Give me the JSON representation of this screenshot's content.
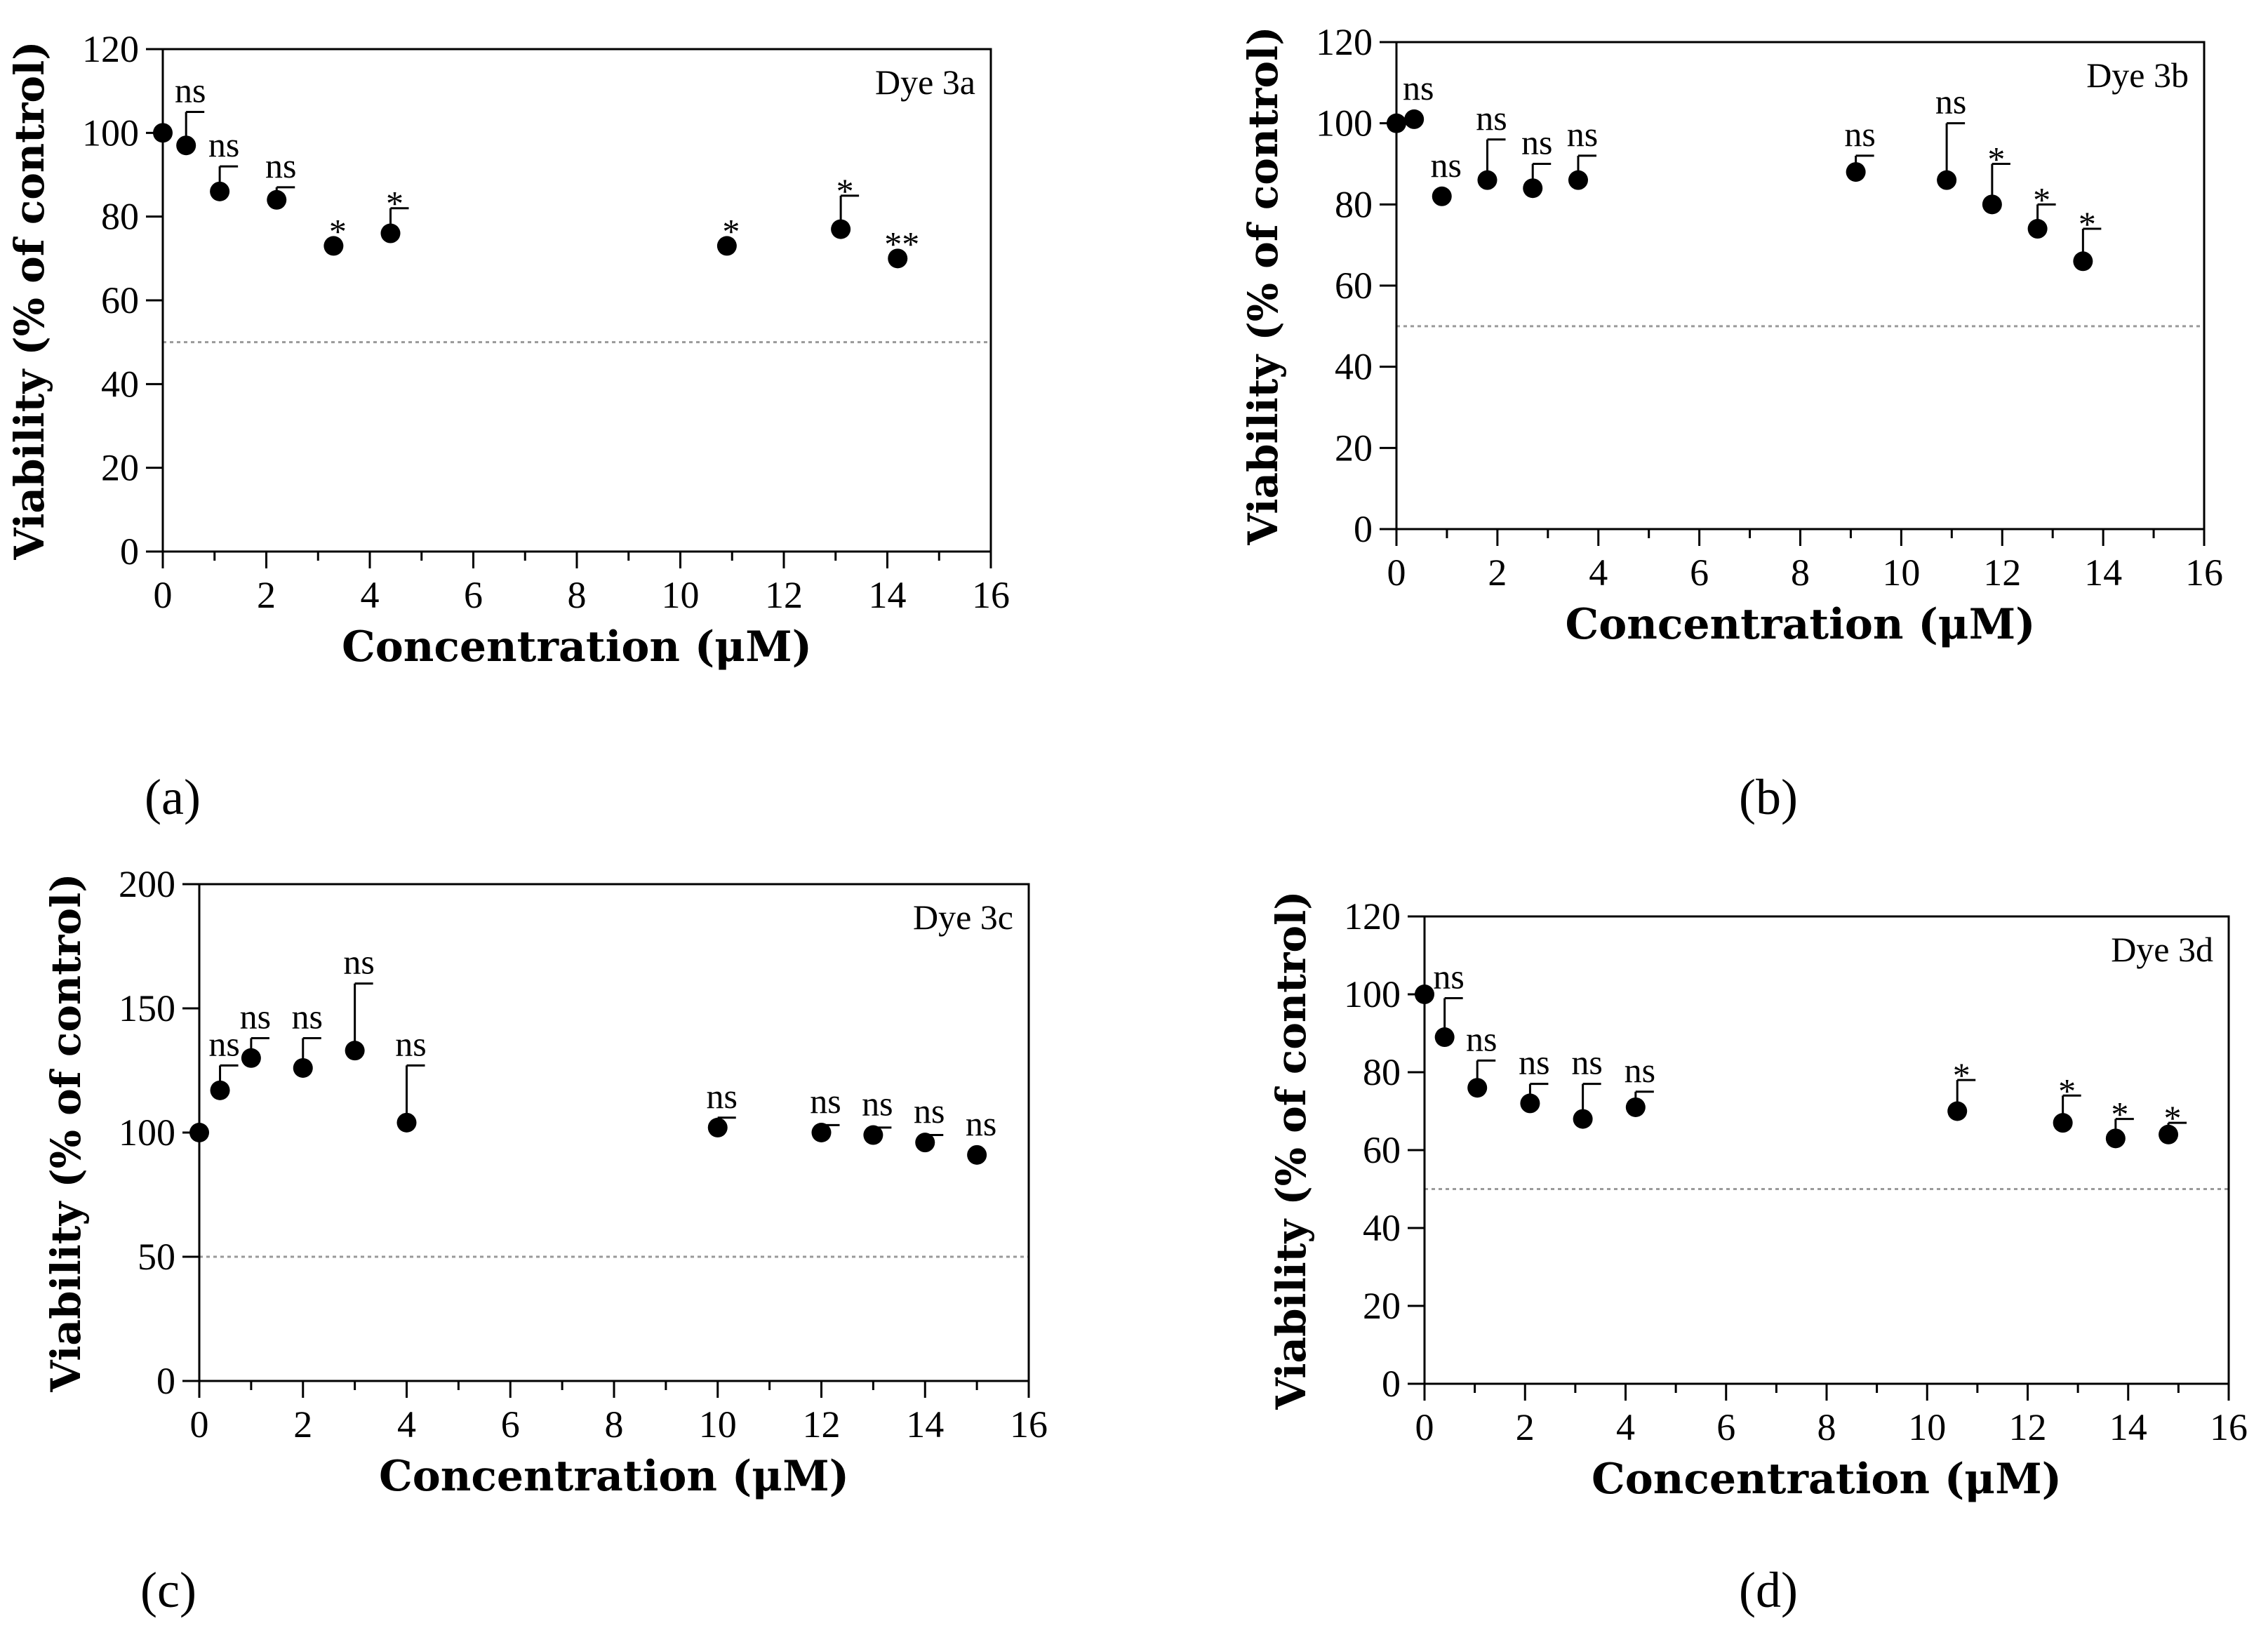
{
  "chart_data": [
    {
      "type": "scatter",
      "panel": "(a)",
      "title": "Dye 3a",
      "xlabel": "Concentration (μM)",
      "ylabel": "Viability (% of control)",
      "xlim": [
        0,
        16
      ],
      "ylim": [
        0,
        120
      ],
      "xticks": [
        0,
        2,
        4,
        6,
        8,
        10,
        12,
        14,
        16
      ],
      "yticks": [
        0,
        20,
        40,
        60,
        80,
        100,
        120
      ],
      "reference_line": 50,
      "points": [
        {
          "x": 0,
          "y": 100,
          "err": 0,
          "label": ""
        },
        {
          "x": 0.45,
          "y": 97,
          "err": 8,
          "label": "ns"
        },
        {
          "x": 1.1,
          "y": 86,
          "err": 6,
          "label": "ns"
        },
        {
          "x": 2.2,
          "y": 84,
          "err": 3,
          "label": "ns"
        },
        {
          "x": 3.3,
          "y": 73,
          "err": 0,
          "label": "*"
        },
        {
          "x": 4.4,
          "y": 76,
          "err": 6,
          "label": "*"
        },
        {
          "x": 10.9,
          "y": 73,
          "err": 0,
          "label": "*"
        },
        {
          "x": 13.1,
          "y": 77,
          "err": 8,
          "label": "*"
        },
        {
          "x": 14.2,
          "y": 70,
          "err": 0,
          "label": "**"
        }
      ]
    },
    {
      "type": "scatter",
      "panel": "(b)",
      "title": "Dye 3b",
      "xlabel": "Concentration (μM)",
      "ylabel": "Viability (% of control)",
      "xlim": [
        0,
        16
      ],
      "ylim": [
        0,
        120
      ],
      "xticks": [
        0,
        2,
        4,
        6,
        8,
        10,
        12,
        14,
        16
      ],
      "yticks": [
        0,
        20,
        40,
        60,
        80,
        100,
        120
      ],
      "reference_line": 50,
      "points": [
        {
          "x": 0,
          "y": 100,
          "err": 0,
          "label": ""
        },
        {
          "x": 0.35,
          "y": 101,
          "err": 0,
          "label": "ns"
        },
        {
          "x": 0.9,
          "y": 82,
          "err": 0,
          "label": "ns"
        },
        {
          "x": 1.8,
          "y": 86,
          "err": 10,
          "label": "ns"
        },
        {
          "x": 2.7,
          "y": 84,
          "err": 6,
          "label": "ns"
        },
        {
          "x": 3.6,
          "y": 86,
          "err": 6,
          "label": "ns"
        },
        {
          "x": 9.1,
          "y": 88,
          "err": 4,
          "label": "ns"
        },
        {
          "x": 10.9,
          "y": 86,
          "err": 14,
          "label": "ns"
        },
        {
          "x": 11.8,
          "y": 80,
          "err": 10,
          "label": "*"
        },
        {
          "x": 12.7,
          "y": 74,
          "err": 6,
          "label": "*"
        },
        {
          "x": 13.6,
          "y": 66,
          "err": 8,
          "label": "*"
        }
      ]
    },
    {
      "type": "scatter",
      "panel": "(c)",
      "title": "Dye 3c",
      "xlabel": "Concentration (μM)",
      "ylabel": "Viability (% of control)",
      "xlim": [
        0,
        16
      ],
      "ylim": [
        0,
        200
      ],
      "xticks": [
        0,
        2,
        4,
        6,
        8,
        10,
        12,
        14,
        16
      ],
      "yticks": [
        0,
        50,
        100,
        150,
        200
      ],
      "reference_line": 50,
      "points": [
        {
          "x": 0,
          "y": 100,
          "err": 0,
          "label": ""
        },
        {
          "x": 0.4,
          "y": 117,
          "err": 10,
          "label": "ns"
        },
        {
          "x": 1,
          "y": 130,
          "err": 8,
          "label": "ns"
        },
        {
          "x": 2,
          "y": 126,
          "err": 12,
          "label": "ns"
        },
        {
          "x": 3,
          "y": 133,
          "err": 27,
          "label": "ns"
        },
        {
          "x": 4,
          "y": 104,
          "err": 23,
          "label": "ns"
        },
        {
          "x": 10,
          "y": 102,
          "err": 4,
          "label": "ns"
        },
        {
          "x": 12,
          "y": 100,
          "err": 3,
          "label": "ns"
        },
        {
          "x": 13,
          "y": 99,
          "err": 3,
          "label": "ns"
        },
        {
          "x": 14,
          "y": 96,
          "err": 3,
          "label": "ns"
        },
        {
          "x": 15,
          "y": 91,
          "err": 0,
          "label": "ns"
        }
      ]
    },
    {
      "type": "scatter",
      "panel": "(d)",
      "title": "Dye 3d",
      "xlabel": "Concentration (μM)",
      "ylabel": "Viability (% of control)",
      "xlim": [
        0,
        16
      ],
      "ylim": [
        0,
        120
      ],
      "xticks": [
        0,
        2,
        4,
        6,
        8,
        10,
        12,
        14,
        16
      ],
      "yticks": [
        0,
        20,
        40,
        60,
        80,
        100,
        120
      ],
      "reference_line": 50,
      "points": [
        {
          "x": 0,
          "y": 100,
          "err": 0,
          "label": ""
        },
        {
          "x": 0.4,
          "y": 89,
          "err": 10,
          "label": "ns"
        },
        {
          "x": 1.05,
          "y": 76,
          "err": 7,
          "label": "ns"
        },
        {
          "x": 2.1,
          "y": 72,
          "err": 5,
          "label": "ns"
        },
        {
          "x": 3.15,
          "y": 68,
          "err": 9,
          "label": "ns"
        },
        {
          "x": 4.2,
          "y": 71,
          "err": 4,
          "label": "ns"
        },
        {
          "x": 10.6,
          "y": 70,
          "err": 8,
          "label": "*"
        },
        {
          "x": 12.7,
          "y": 67,
          "err": 7,
          "label": "*"
        },
        {
          "x": 13.75,
          "y": 63,
          "err": 5,
          "label": "*"
        },
        {
          "x": 14.8,
          "y": 64,
          "err": 3,
          "label": "*"
        }
      ]
    }
  ]
}
